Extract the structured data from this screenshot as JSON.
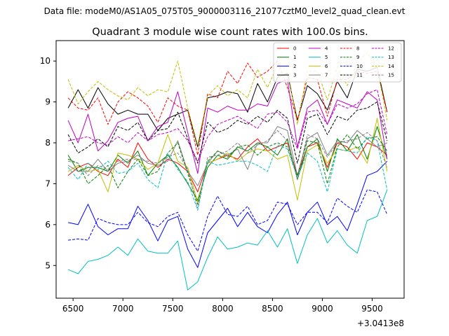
{
  "chart_data": {
    "type": "line",
    "suptitle": "Data file: modeM0/AS1A05_075T05_9000003116_21077cztM0_level2_quad_clean.evt",
    "title": "Quadrant 3 module wise count rates with 100.0s bins.",
    "xlabel": "",
    "ylabel": "",
    "offset_text": "+3.0413e8",
    "xlim": [
      6330,
      9820
    ],
    "ylim": [
      4.2,
      10.5
    ],
    "xticks": [
      6500,
      7000,
      7500,
      8000,
      8500,
      9000,
      9500
    ],
    "yticks": [
      5,
      6,
      7,
      8,
      9,
      10
    ],
    "x": [
      6450,
      6550,
      6650,
      6750,
      6850,
      6950,
      7050,
      7150,
      7250,
      7350,
      7450,
      7550,
      7650,
      7750,
      7850,
      7950,
      8050,
      8150,
      8250,
      8350,
      8450,
      8550,
      8650,
      8750,
      8850,
      8950,
      9050,
      9150,
      9250,
      9350,
      9450,
      9550,
      9650
    ],
    "series": [
      {
        "name": "0",
        "color": "#ff0000",
        "dash": false,
        "values": [
          7.2,
          7.4,
          7.5,
          7.3,
          7.2,
          7.6,
          7.4,
          8.0,
          7.6,
          7.4,
          7.6,
          7.5,
          7.3,
          6.8,
          7.5,
          7.6,
          7.7,
          7.6,
          7.9,
          8.1,
          7.8,
          7.9,
          8.0,
          7.2,
          7.9,
          8.0,
          7.4,
          8.0,
          7.9,
          7.6,
          8.0,
          7.9,
          7.7
        ]
      },
      {
        "name": "1",
        "color": "#008000",
        "dash": false,
        "values": [
          7.7,
          7.3,
          7.4,
          7.4,
          7.3,
          7.7,
          7.5,
          7.8,
          7.2,
          7.5,
          7.7,
          7.4,
          7.0,
          6.6,
          7.4,
          7.7,
          7.6,
          7.9,
          7.8,
          8.0,
          7.9,
          7.7,
          8.1,
          7.1,
          7.9,
          8.1,
          7.3,
          8.1,
          7.8,
          8.2,
          7.6,
          8.4,
          7.6
        ]
      },
      {
        "name": "2",
        "color": "#0000ff",
        "dash": false,
        "values": [
          6.05,
          6.0,
          6.5,
          5.95,
          5.75,
          5.9,
          5.9,
          6.45,
          6.1,
          5.6,
          6.1,
          6.2,
          5.4,
          4.95,
          5.8,
          6.1,
          6.4,
          5.95,
          6.3,
          5.95,
          5.8,
          6.25,
          6.55,
          5.75,
          6.3,
          6.55,
          6.0,
          6.2,
          5.85,
          6.5,
          7.2,
          7.3,
          7.55
        ]
      },
      {
        "name": "3",
        "color": "#000000",
        "dash": false,
        "values": [
          8.85,
          9.3,
          8.85,
          9.35,
          8.95,
          8.7,
          8.8,
          8.7,
          8.7,
          8.3,
          8.6,
          8.7,
          8.8,
          7.9,
          9.1,
          9.15,
          9.25,
          9.2,
          8.75,
          9.45,
          9.0,
          9.6,
          9.7,
          8.55,
          9.4,
          9.2,
          8.8,
          9.5,
          9.1,
          9.8,
          9.75,
          9.85,
          8.75
        ]
      },
      {
        "name": "4",
        "color": "#c000c0",
        "dash": false,
        "values": [
          8.55,
          8.0,
          8.7,
          7.8,
          8.05,
          8.5,
          8.6,
          8.65,
          8.05,
          8.4,
          8.5,
          9.25,
          8.25,
          7.25,
          8.85,
          8.75,
          8.9,
          8.8,
          8.8,
          8.95,
          8.9,
          9.45,
          9.55,
          7.9,
          8.85,
          9.05,
          8.45,
          9.05,
          8.95,
          8.85,
          9.25,
          9.05,
          7.6
        ]
      },
      {
        "name": "5",
        "color": "#00c0c0",
        "dash": false,
        "values": [
          4.9,
          4.8,
          5.1,
          5.15,
          5.25,
          5.45,
          5.25,
          5.65,
          5.35,
          5.3,
          5.3,
          5.6,
          4.4,
          4.6,
          5.2,
          5.7,
          5.4,
          5.45,
          5.55,
          5.5,
          5.85,
          5.45,
          5.9,
          5.05,
          5.75,
          6.15,
          5.55,
          5.85,
          5.5,
          5.3,
          6.1,
          6.2,
          6.85
        ]
      },
      {
        "name": "6",
        "color": "#c0c000",
        "dash": false,
        "values": [
          7.3,
          7.45,
          7.3,
          7.35,
          6.8,
          7.75,
          7.7,
          7.6,
          7.35,
          7.5,
          8.2,
          7.55,
          7.4,
          6.55,
          7.5,
          7.6,
          7.75,
          7.55,
          7.75,
          7.85,
          7.8,
          7.6,
          7.7,
          6.6,
          7.8,
          7.95,
          7.5,
          7.85,
          7.8,
          7.9,
          7.5,
          8.6,
          7.3
        ]
      },
      {
        "name": "7",
        "color": "#808080",
        "dash": false,
        "values": [
          7.45,
          7.3,
          7.3,
          7.6,
          7.3,
          7.5,
          7.55,
          7.7,
          7.5,
          7.45,
          7.55,
          8.05,
          7.3,
          6.95,
          7.5,
          7.8,
          7.7,
          7.85,
          7.35,
          8.0,
          8.0,
          8.4,
          8.3,
          7.2,
          8.1,
          8.25,
          7.7,
          8.05,
          8.0,
          8.3,
          8.1,
          7.9,
          8.0
        ]
      },
      {
        "name": "8",
        "color": "#ff0000",
        "dash": true,
        "values": [
          9.1,
          8.85,
          8.8,
          9.1,
          8.45,
          9.0,
          9.25,
          9.1,
          8.9,
          8.5,
          9.1,
          8.9,
          8.8,
          7.7,
          9.2,
          9.1,
          9.75,
          9.45,
          9.95,
          9.6,
          9.75,
          10.0,
          9.35,
          8.55,
          9.6,
          9.55,
          8.65,
          9.55,
          9.55,
          9.75,
          9.7,
          9.75,
          8.75
        ]
      },
      {
        "name": "9",
        "color": "#008000",
        "dash": true,
        "values": [
          7.6,
          7.5,
          7.0,
          7.2,
          7.45,
          6.9,
          7.3,
          7.6,
          7.2,
          7.3,
          7.75,
          8.0,
          7.25,
          6.5,
          7.55,
          7.8,
          7.65,
          7.9,
          7.95,
          7.7,
          7.9,
          8.0,
          7.9,
          7.2,
          8.05,
          8.0,
          7.0,
          7.9,
          8.2,
          7.85,
          8.1,
          8.15,
          7.8
        ]
      },
      {
        "name": "10",
        "color": "#0000ff",
        "dash": true,
        "values": [
          5.62,
          5.65,
          5.62,
          6.15,
          6.05,
          6.0,
          6.0,
          6.3,
          6.05,
          5.95,
          6.2,
          6.3,
          5.75,
          5.35,
          6.2,
          6.7,
          6.25,
          6.2,
          6.45,
          6.0,
          6.1,
          6.55,
          6.5,
          6.0,
          6.3,
          6.3,
          6.05,
          6.65,
          6.45,
          6.3,
          6.85,
          6.8,
          6.25
        ]
      },
      {
        "name": "11",
        "color": "#000000",
        "dash": true,
        "values": [
          8.2,
          7.75,
          7.9,
          8.1,
          7.9,
          8.4,
          8.3,
          8.5,
          8.05,
          8.3,
          8.35,
          8.75,
          8.1,
          7.5,
          8.5,
          8.25,
          8.35,
          8.55,
          8.45,
          8.65,
          8.5,
          8.8,
          8.6,
          7.5,
          8.6,
          8.7,
          8.2,
          8.65,
          8.55,
          8.8,
          8.85,
          9.0,
          8.05
        ]
      },
      {
        "name": "12",
        "color": "#c000c0",
        "dash": true,
        "values": [
          8.05,
          8.1,
          8.15,
          8.0,
          7.95,
          8.15,
          8.0,
          8.25,
          8.05,
          8.2,
          8.25,
          8.35,
          8.05,
          7.55,
          8.15,
          8.45,
          8.55,
          8.65,
          8.5,
          8.35,
          8.7,
          8.75,
          8.5,
          7.85,
          8.75,
          8.8,
          8.45,
          8.95,
          8.85,
          8.95,
          9.2,
          9.3,
          8.2
        ]
      },
      {
        "name": "13",
        "color": "#00c0c0",
        "dash": true,
        "values": [
          7.4,
          7.1,
          7.5,
          7.35,
          7.55,
          7.25,
          7.3,
          7.5,
          7.1,
          6.9,
          7.75,
          7.35,
          7.05,
          6.35,
          7.55,
          7.45,
          7.5,
          7.55,
          7.55,
          7.45,
          7.3,
          7.95,
          7.85,
          7.15,
          7.75,
          7.55,
          6.8,
          7.85,
          7.8,
          7.75,
          8.15,
          8.05,
          6.85
        ]
      },
      {
        "name": "14",
        "color": "#c0c000",
        "dash": true,
        "values": [
          9.55,
          8.95,
          9.25,
          9.5,
          9.3,
          9.15,
          9.05,
          9.35,
          9.15,
          9.3,
          9.25,
          10.0,
          8.85,
          7.95,
          9.15,
          9.4,
          9.15,
          9.3,
          9.1,
          9.8,
          9.35,
          9.9,
          9.8,
          8.45,
          9.75,
          9.75,
          9.05,
          9.85,
          9.4,
          9.95,
          10.2,
          9.85,
          8.55
        ]
      },
      {
        "name": "15",
        "color": "#808080",
        "dash": true,
        "values": [
          7.55,
          7.5,
          7.2,
          7.45,
          7.35,
          7.55,
          7.6,
          7.6,
          7.55,
          7.5,
          7.65,
          7.75,
          7.35,
          6.4,
          7.65,
          7.7,
          7.8,
          8.0,
          7.75,
          7.95,
          8.05,
          8.3,
          8.05,
          7.1,
          8.2,
          8.1,
          7.65,
          8.0,
          8.05,
          8.1,
          8.25,
          8.05,
          7.4
        ]
      }
    ]
  }
}
